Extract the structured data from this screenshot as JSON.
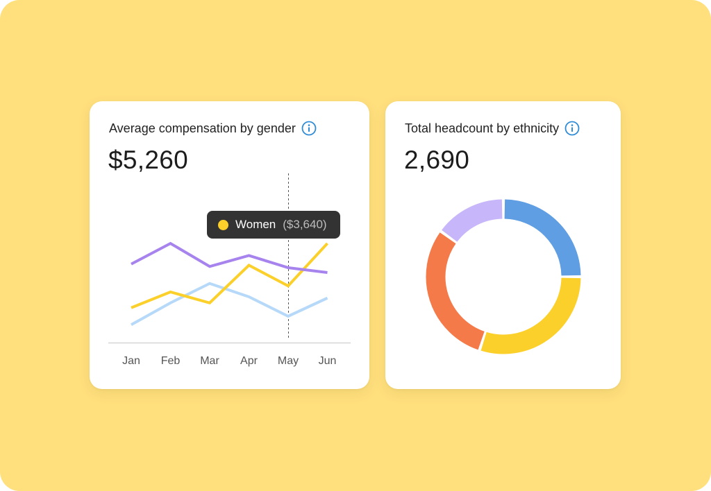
{
  "colors": {
    "background": "#FFE07D",
    "women": "#FCD02A",
    "men": "#A783EE",
    "other": "#B6D9F9",
    "info_icon": "#2E8BD6"
  },
  "cards": {
    "compensation": {
      "title": "Average compensation by gender",
      "value": "$5,260",
      "info_icon": "info-icon",
      "tooltip": {
        "label": "Women",
        "value": "($3,640)"
      }
    },
    "headcount": {
      "title": "Total headcount by ethnicity",
      "value": "2,690",
      "info_icon": "info-icon"
    }
  },
  "chart_data": [
    {
      "type": "line",
      "title": "Average compensation by gender",
      "categories": [
        "Jan",
        "Feb",
        "Mar",
        "Apr",
        "May",
        "Jun"
      ],
      "ylim": [
        0,
        10
      ],
      "grid": false,
      "highlight_category": "May",
      "series": [
        {
          "name": "Purple series",
          "color": "#A783EE",
          "values": [
            6.3,
            8.0,
            6.1,
            7.0,
            6.0,
            5.6
          ]
        },
        {
          "name": "Women",
          "color": "#FCD02A",
          "values": [
            2.7,
            4.0,
            3.1,
            6.2,
            4.5,
            8.0
          ]
        },
        {
          "name": "Light blue series",
          "color": "#B6D9F9",
          "values": [
            1.3,
            3.1,
            4.7,
            3.6,
            2.0,
            3.5
          ]
        }
      ]
    },
    {
      "type": "pie",
      "title": "Total headcount by ethnicity",
      "donut": true,
      "slices": [
        {
          "color": "#5F9EE2",
          "value": 25
        },
        {
          "color": "#FCD02A",
          "value": 30
        },
        {
          "color": "#F47A4A",
          "value": 30
        },
        {
          "color": "#C8B6FA",
          "value": 15
        }
      ]
    }
  ]
}
